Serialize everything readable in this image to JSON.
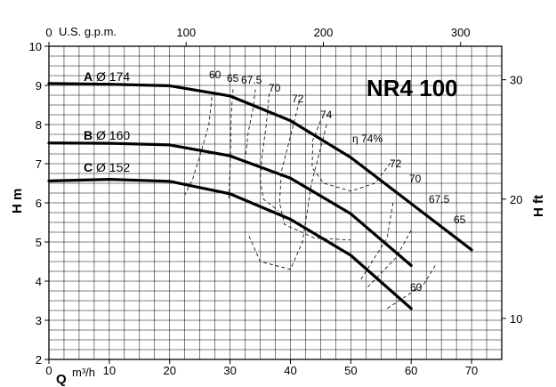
{
  "chart_data": {
    "type": "line",
    "title": "NR4 100",
    "x_axis": {
      "label_symbol": "Q",
      "label_unit": "m³/h",
      "ticks": [
        "0",
        "10",
        "20",
        "30",
        "40",
        "50",
        "60",
        "70"
      ],
      "range": [
        0,
        75
      ]
    },
    "x_top_axis": {
      "label": "U.S. g.p.m.",
      "ticks": [
        "0",
        "100",
        "200",
        "300"
      ],
      "range": [
        0,
        330
      ]
    },
    "y_axis": {
      "label": "H m",
      "ticks": [
        "2",
        "3",
        "4",
        "5",
        "6",
        "7",
        "8",
        "9",
        "10"
      ],
      "range": [
        2,
        10
      ]
    },
    "y_right_axis": {
      "label": "H ft",
      "ticks": [
        "10",
        "20",
        "30"
      ]
    },
    "grid": true,
    "series": [
      {
        "name": "A",
        "diameter": "Ø 174",
        "x": [
          0,
          10,
          20,
          30,
          40,
          50,
          60,
          70
        ],
        "y": [
          9.05,
          9.03,
          8.99,
          8.73,
          8.1,
          7.16,
          5.98,
          4.8
        ]
      },
      {
        "name": "B",
        "diameter": "Ø 160",
        "x": [
          0,
          10,
          20,
          30,
          40,
          50,
          60
        ],
        "y": [
          7.53,
          7.52,
          7.48,
          7.2,
          6.63,
          5.72,
          4.4
        ]
      },
      {
        "name": "C",
        "diameter": "Ø 152",
        "x": [
          0,
          10,
          20,
          30,
          40,
          50,
          60
        ],
        "y": [
          6.56,
          6.6,
          6.55,
          6.23,
          5.58,
          4.66,
          3.3
        ]
      }
    ],
    "efficiency_labels": [
      "60",
      "65",
      "67.5",
      "70",
      "72",
      "74",
      "η 74%",
      "72",
      "70",
      "67.5",
      "65",
      "60"
    ]
  }
}
